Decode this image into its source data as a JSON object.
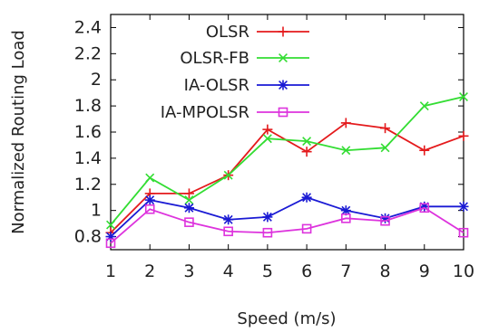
{
  "chart_data": {
    "type": "line",
    "title": "",
    "xlabel": "Speed (m/s)",
    "ylabel": "Normalized Routing Load",
    "x": [
      1,
      2,
      3,
      4,
      5,
      6,
      7,
      8,
      9,
      10
    ],
    "xlim": [
      1,
      10
    ],
    "ylim": [
      0.7,
      2.5
    ],
    "xticks": [
      "1",
      "2",
      "3",
      "4",
      "5",
      "6",
      "7",
      "8",
      "9",
      "10"
    ],
    "yticks": [
      {
        "value": 0.8,
        "label": "0.8"
      },
      {
        "value": 1.0,
        "label": "1"
      },
      {
        "value": 1.2,
        "label": "1.2"
      },
      {
        "value": 1.4,
        "label": "1.4"
      },
      {
        "value": 1.6,
        "label": "1.6"
      },
      {
        "value": 1.8,
        "label": "1.8"
      },
      {
        "value": 2.0,
        "label": "2"
      },
      {
        "value": 2.2,
        "label": "2.2"
      },
      {
        "value": 2.4,
        "label": "2.4"
      }
    ],
    "grid": false,
    "legend_position": "top-left",
    "series": [
      {
        "name": "OLSR",
        "color": "#e41a1c",
        "marker": "plus",
        "values": [
          0.83,
          1.13,
          1.13,
          1.27,
          1.62,
          1.45,
          1.67,
          1.63,
          1.46,
          1.57
        ]
      },
      {
        "name": "OLSR-FB",
        "color": "#33dd33",
        "marker": "cross",
        "values": [
          0.89,
          1.25,
          1.08,
          1.27,
          1.55,
          1.53,
          1.46,
          1.48,
          1.8,
          1.87
        ]
      },
      {
        "name": "IA-OLSR",
        "color": "#1a1ad4",
        "marker": "star",
        "values": [
          0.8,
          1.08,
          1.02,
          0.93,
          0.95,
          1.1,
          1.0,
          0.94,
          1.03,
          1.03
        ]
      },
      {
        "name": "IA-MPOLSR",
        "color": "#dd33dd",
        "marker": "square",
        "values": [
          0.75,
          1.01,
          0.91,
          0.84,
          0.83,
          0.86,
          0.94,
          0.92,
          1.02,
          0.83
        ]
      }
    ]
  }
}
